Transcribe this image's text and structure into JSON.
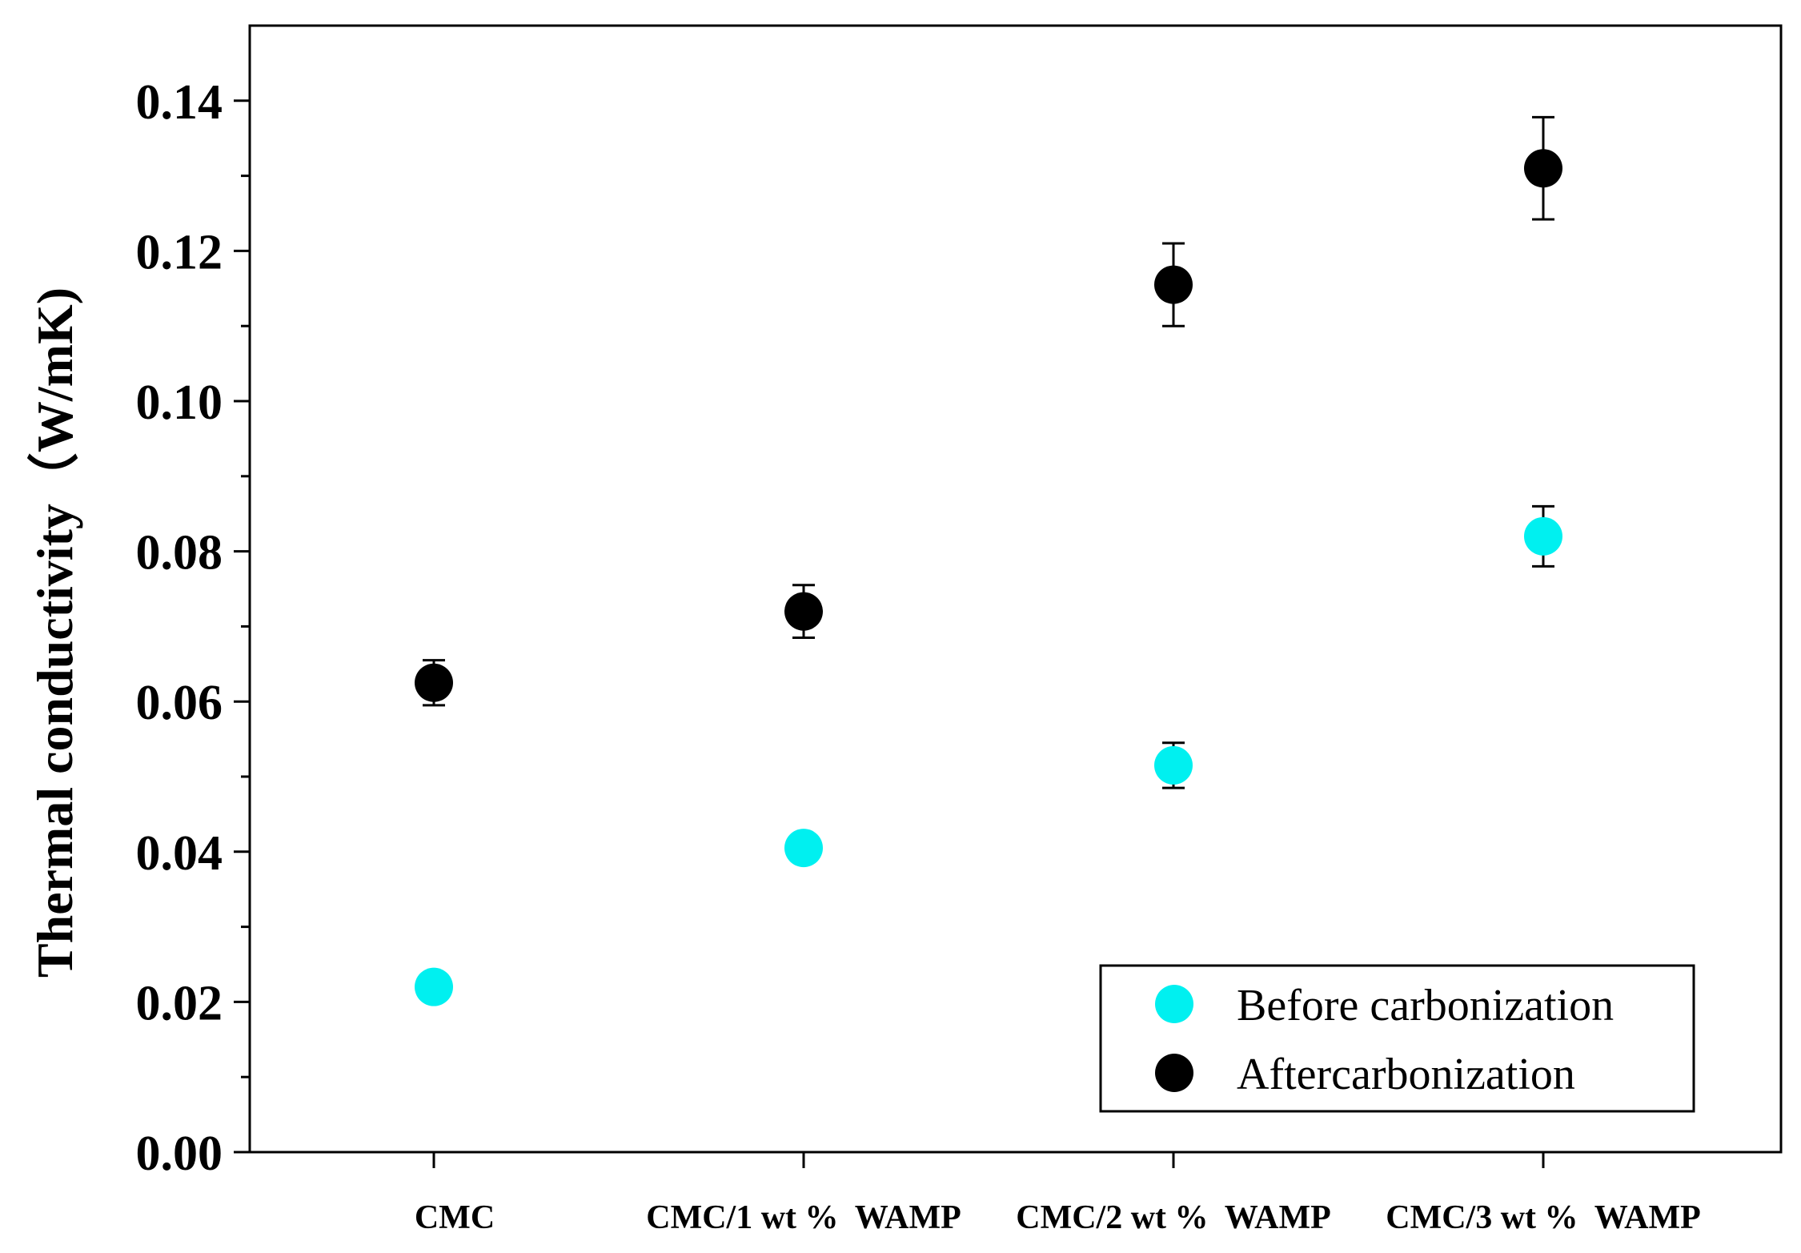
{
  "chart_data": {
    "type": "scatter",
    "xlabel": "",
    "ylabel": "Thermal conductivity（W/mK)",
    "categories": [
      "CMC",
      "CMC/1 wt %  WAMP",
      "CMC/2 wt %  WAMP",
      "CMC/3 wt %  WAMP"
    ],
    "ylim": [
      0,
      0.15
    ],
    "yticks": [
      "0.00",
      "0.02",
      "0.04",
      "0.06",
      "0.08",
      "0.10",
      "0.12",
      "0.14"
    ],
    "ytick_values": [
      0,
      0.02,
      0.04,
      0.06,
      0.08,
      0.1,
      0.12,
      0.14
    ],
    "grid": false,
    "legend_position": "bottom-right",
    "series": [
      {
        "name": "Before carbonization",
        "color": "#00f0f0",
        "values": [
          0.022,
          0.0405,
          0.0515,
          0.082
        ],
        "errors": [
          0.001,
          0.001,
          0.003,
          0.004
        ]
      },
      {
        "name": "Aftercarbonization",
        "color": "#000000",
        "values": [
          0.0625,
          0.072,
          0.1155,
          0.131
        ],
        "errors": [
          0.003,
          0.0035,
          0.0055,
          0.0068
        ]
      }
    ]
  }
}
